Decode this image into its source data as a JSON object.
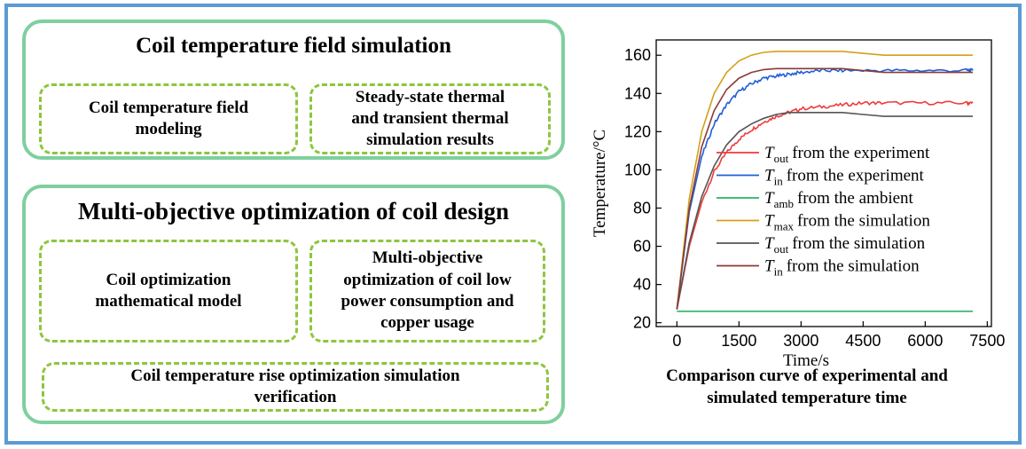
{
  "top_section": {
    "title": "Coil temperature field simulation",
    "boxes": [
      {
        "label": "Coil temperature field\nmodeling"
      },
      {
        "label": "Steady-state thermal\nand transient thermal\nsimulation results"
      }
    ]
  },
  "bottom_section": {
    "title": "Multi-objective optimization of coil design",
    "boxes": [
      {
        "label": "Coil optimization\nmathematical model"
      },
      {
        "label": "Multi-objective\noptimization of coil low\npower consumption and\ncopper usage"
      },
      {
        "label": "Coil temperature rise optimization simulation\nverification"
      }
    ]
  },
  "chart_caption": "Comparison curve of experimental and\nsimulated temperature time",
  "colors": {
    "frame": "#5b9bd5",
    "section_border": "#7fcf9f",
    "dash_border": "#8cc63f"
  },
  "chart_data": {
    "type": "line",
    "xlabel": "Time/s",
    "ylabel": "Temperature/°C",
    "xlim": [
      -500,
      7600
    ],
    "ylim": [
      18,
      168
    ],
    "xticks": [
      0,
      1500,
      3000,
      4500,
      6000,
      7500
    ],
    "yticks": [
      20,
      40,
      60,
      80,
      100,
      120,
      140,
      160
    ],
    "legend_position": "center-right",
    "series": [
      {
        "var": "T",
        "sub": "out",
        "text": "from the experiment",
        "color": "#ee3b3b",
        "noisy": true,
        "x": [
          0,
          300,
          600,
          900,
          1200,
          1500,
          1800,
          2100,
          2400,
          2700,
          3000,
          3500,
          4000,
          4500,
          5000,
          6000,
          7000,
          7150
        ],
        "y": [
          27,
          60,
          83,
          99,
          109,
          116,
          121,
          125,
          128,
          130,
          132,
          133,
          134,
          135,
          135,
          135,
          135,
          135
        ]
      },
      {
        "var": "T",
        "sub": "in",
        "text": "from the experiment",
        "color": "#1f5fd6",
        "noisy": true,
        "x": [
          0,
          300,
          600,
          900,
          1200,
          1500,
          1800,
          2100,
          2400,
          2700,
          3000,
          3500,
          4000,
          5000,
          6000,
          7000,
          7150
        ],
        "y": [
          27,
          78,
          107,
          124,
          134,
          141,
          145,
          148,
          149,
          150,
          151,
          152,
          152,
          152,
          152,
          152,
          152
        ]
      },
      {
        "var": "T",
        "sub": "amb",
        "text": "from the ambient",
        "color": "#2db36a",
        "noisy": false,
        "x": [
          0,
          7150
        ],
        "y": [
          26,
          26
        ]
      },
      {
        "var": "T",
        "sub": "max",
        "text": "from the simulation",
        "color": "#d4a017",
        "noisy": false,
        "x": [
          0,
          300,
          600,
          900,
          1200,
          1500,
          1800,
          2100,
          2400,
          2700,
          3000,
          4000,
          4500,
          5000,
          6000,
          7150
        ],
        "y": [
          27,
          85,
          120,
          140,
          151,
          157,
          160,
          161.5,
          162,
          162,
          162,
          162,
          161,
          160,
          160,
          160
        ]
      },
      {
        "var": "T",
        "sub": "out",
        "text": "from the simulation",
        "color": "#555555",
        "noisy": false,
        "x": [
          0,
          300,
          600,
          900,
          1200,
          1500,
          1800,
          2100,
          2400,
          2700,
          3000,
          3500,
          4000,
          4500,
          5000,
          6000,
          7150
        ],
        "y": [
          27,
          62,
          86,
          102,
          113,
          120,
          124,
          127,
          129,
          130,
          130,
          130,
          130,
          129,
          128,
          128,
          128
        ]
      },
      {
        "var": "T",
        "sub": "in",
        "text": "from the simulation",
        "color": "#8b3a3a",
        "noisy": false,
        "x": [
          0,
          300,
          600,
          900,
          1200,
          1500,
          1800,
          2100,
          2400,
          2700,
          3000,
          4000,
          4500,
          5000,
          6000,
          7150
        ],
        "y": [
          27,
          80,
          112,
          131,
          142,
          148,
          151,
          152.5,
          153,
          153,
          153,
          153,
          152,
          151,
          151,
          151
        ]
      }
    ]
  }
}
